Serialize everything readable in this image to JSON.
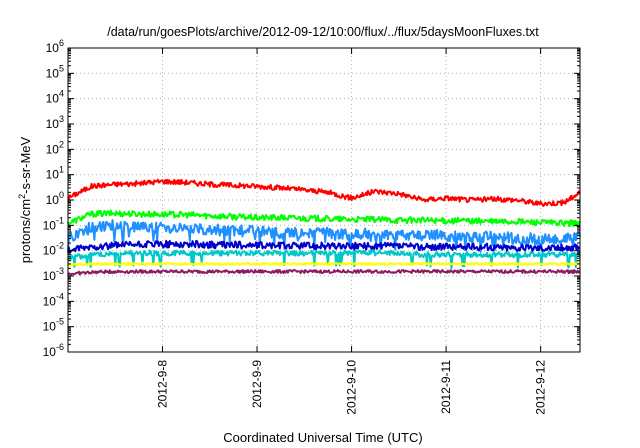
{
  "chart_data": {
    "type": "line",
    "title": "/data/run/goesPlots/archive/2012-09-12/10:00/flux/../flux/5daysMoonFluxes.txt",
    "xlabel": "Coordinated Universal Time (UTC)",
    "ylabel": {
      "prefix": "protons/cm",
      "superscript": "2",
      "suffix": "-s-sr-MeV"
    },
    "y_scale": "log",
    "ylim": [
      1e-06,
      1000000.0
    ],
    "y_ticks": [
      {
        "value": 1e-06,
        "base": "10",
        "exp": "-6"
      },
      {
        "value": 1e-05,
        "base": "10",
        "exp": "-5"
      },
      {
        "value": 0.0001,
        "base": "10",
        "exp": "-4"
      },
      {
        "value": 0.001,
        "base": "10",
        "exp": "-3"
      },
      {
        "value": 0.01,
        "base": "10",
        "exp": "-2"
      },
      {
        "value": 0.1,
        "base": "10",
        "exp": "-1"
      },
      {
        "value": 1,
        "base": "10",
        "exp": "0"
      },
      {
        "value": 10.0,
        "base": "10",
        "exp": "1"
      },
      {
        "value": 100.0,
        "base": "10",
        "exp": "2"
      },
      {
        "value": 1000.0,
        "base": "10",
        "exp": "3"
      },
      {
        "value": 10000.0,
        "base": "10",
        "exp": "4"
      },
      {
        "value": 100000.0,
        "base": "10",
        "exp": "5"
      },
      {
        "value": 1000000.0,
        "base": "10",
        "exp": "6"
      }
    ],
    "xlim": [
      "2012-09-07T00:00",
      "2012-09-12T10:00"
    ],
    "x_ticks": [
      {
        "value": "2012-09-08T00:00",
        "label": "2012-9-8"
      },
      {
        "value": "2012-09-09T00:00",
        "label": "2012-9-9"
      },
      {
        "value": "2012-09-10T00:00",
        "label": "2012-9-10"
      },
      {
        "value": "2012-09-11T00:00",
        "label": "2012-9-11"
      },
      {
        "value": "2012-09-12T00:00",
        "label": "2012-9-12"
      }
    ],
    "grid": true,
    "x": [
      "2012-09-07T00:00",
      "2012-09-07T06:00",
      "2012-09-07T12:00",
      "2012-09-07T18:00",
      "2012-09-08T00:00",
      "2012-09-08T06:00",
      "2012-09-08T12:00",
      "2012-09-08T18:00",
      "2012-09-09T00:00",
      "2012-09-09T06:00",
      "2012-09-09T12:00",
      "2012-09-09T18:00",
      "2012-09-10T00:00",
      "2012-09-10T06:00",
      "2012-09-10T12:00",
      "2012-09-10T18:00",
      "2012-09-11T00:00",
      "2012-09-11T06:00",
      "2012-09-11T12:00",
      "2012-09-11T18:00",
      "2012-09-12T00:00",
      "2012-09-12T06:00",
      "2012-09-12T10:00"
    ],
    "series": [
      {
        "color": "#ff0000",
        "values": [
          1.2,
          3.5,
          4.2,
          4.5,
          5.5,
          5.0,
          4.2,
          3.8,
          3.5,
          3.0,
          2.5,
          2.0,
          1.2,
          2.2,
          1.8,
          1.0,
          1.2,
          1.0,
          1.1,
          1.0,
          0.7,
          0.8,
          2.0
        ]
      },
      {
        "color": "#00ff00",
        "values": [
          0.12,
          0.28,
          0.3,
          0.28,
          0.27,
          0.26,
          0.24,
          0.22,
          0.2,
          0.2,
          0.19,
          0.18,
          0.17,
          0.17,
          0.16,
          0.16,
          0.15,
          0.15,
          0.14,
          0.14,
          0.13,
          0.12,
          0.12
        ]
      },
      {
        "color": "#1e90ff",
        "values": [
          0.03,
          0.09,
          0.1,
          0.09,
          0.08,
          0.07,
          0.07,
          0.06,
          0.06,
          0.05,
          0.05,
          0.05,
          0.04,
          0.05,
          0.04,
          0.04,
          0.04,
          0.03,
          0.04,
          0.03,
          0.03,
          0.03,
          0.035
        ]
      },
      {
        "color": "#0000cd",
        "values": [
          0.01,
          0.014,
          0.016,
          0.017,
          0.018,
          0.018,
          0.017,
          0.017,
          0.016,
          0.016,
          0.016,
          0.015,
          0.015,
          0.015,
          0.015,
          0.014,
          0.014,
          0.014,
          0.014,
          0.013,
          0.013,
          0.013,
          0.013
        ]
      },
      {
        "color": "#00c8c8",
        "values": [
          0.005,
          0.007,
          0.008,
          0.008,
          0.008,
          0.008,
          0.008,
          0.008,
          0.008,
          0.008,
          0.008,
          0.008,
          0.008,
          0.008,
          0.008,
          0.007,
          0.007,
          0.007,
          0.007,
          0.007,
          0.007,
          0.007,
          0.007
        ]
      },
      {
        "color": "#ffff00",
        "values": [
          0.0028,
          0.003,
          0.003,
          0.003,
          0.003,
          0.003,
          0.003,
          0.003,
          0.003,
          0.003,
          0.003,
          0.003,
          0.003,
          0.003,
          0.003,
          0.003,
          0.003,
          0.003,
          0.003,
          0.003,
          0.003,
          0.003,
          0.003
        ]
      },
      {
        "color": "#8b1c62",
        "values": [
          0.0012,
          0.0014,
          0.0015,
          0.0015,
          0.0015,
          0.0015,
          0.0015,
          0.0015,
          0.0015,
          0.0015,
          0.0015,
          0.0015,
          0.0015,
          0.0015,
          0.0015,
          0.0015,
          0.0015,
          0.0015,
          0.0015,
          0.0015,
          0.0015,
          0.0015,
          0.0015
        ]
      }
    ]
  }
}
